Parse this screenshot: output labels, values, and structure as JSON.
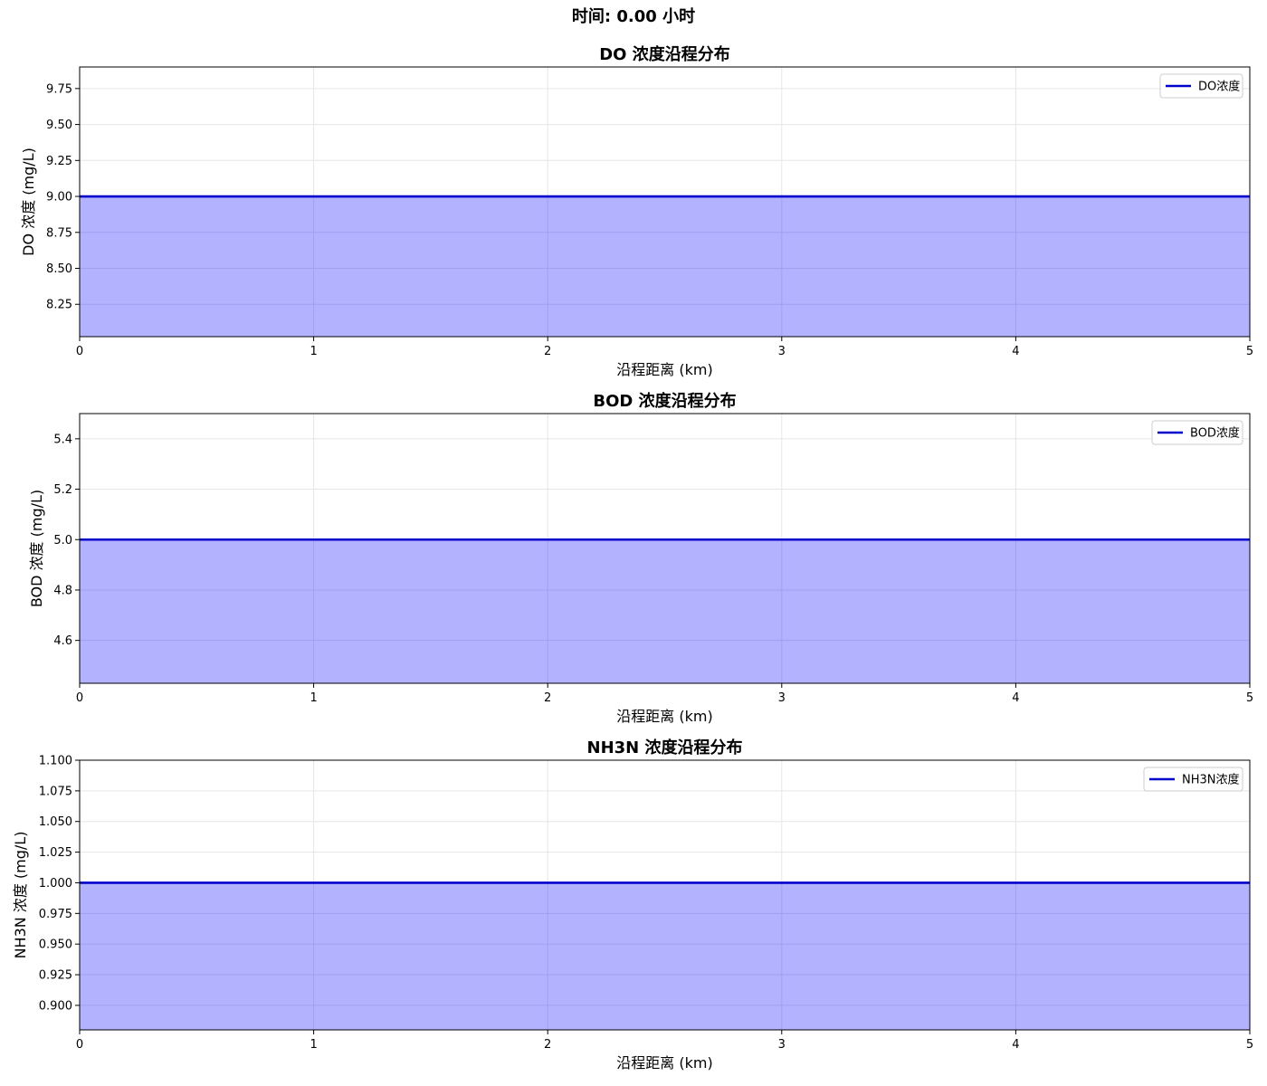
{
  "suptitle": "时间: 0.00 小时",
  "colors": {
    "line": "#0000cc",
    "fill": "#0000ff",
    "grid": "#e6e6e6"
  },
  "chart_data": [
    {
      "type": "area",
      "title": "DO 浓度沿程分布",
      "xlabel": "沿程距离 (km)",
      "ylabel": "DO 浓度 (mg/L)",
      "xlim": [
        0,
        5
      ],
      "ylim": [
        8.025,
        9.9
      ],
      "xticks": [
        0,
        1,
        2,
        3,
        4,
        5
      ],
      "xtick_labels": [
        "0",
        "1",
        "2",
        "3",
        "4",
        "5"
      ],
      "yticks": [
        8.25,
        8.5,
        8.75,
        9.0,
        9.25,
        9.5,
        9.75
      ],
      "ytick_labels": [
        "8.25",
        "8.50",
        "8.75",
        "9.00",
        "9.25",
        "9.50",
        "9.75"
      ],
      "grid": true,
      "legend_position": "top-right",
      "series": [
        {
          "name": "DO浓度",
          "x": [
            0,
            5
          ],
          "y": [
            9.0,
            9.0
          ]
        }
      ]
    },
    {
      "type": "area",
      "title": "BOD 浓度沿程分布",
      "xlabel": "沿程距离 (km)",
      "ylabel": "BOD 浓度 (mg/L)",
      "xlim": [
        0,
        5
      ],
      "ylim": [
        4.43,
        5.5
      ],
      "xticks": [
        0,
        1,
        2,
        3,
        4,
        5
      ],
      "xtick_labels": [
        "0",
        "1",
        "2",
        "3",
        "4",
        "5"
      ],
      "yticks": [
        4.6,
        4.8,
        5.0,
        5.2,
        5.4
      ],
      "ytick_labels": [
        "4.6",
        "4.8",
        "5.0",
        "5.2",
        "5.4"
      ],
      "grid": true,
      "legend_position": "top-right",
      "series": [
        {
          "name": "BOD浓度",
          "x": [
            0,
            5
          ],
          "y": [
            5.0,
            5.0
          ]
        }
      ]
    },
    {
      "type": "area",
      "title": "NH3N 浓度沿程分布",
      "xlabel": "沿程距离 (km)",
      "ylabel": "NH3N 浓度 (mg/L)",
      "xlim": [
        0,
        5
      ],
      "ylim": [
        0.88,
        1.1
      ],
      "xticks": [
        0,
        1,
        2,
        3,
        4,
        5
      ],
      "xtick_labels": [
        "0",
        "1",
        "2",
        "3",
        "4",
        "5"
      ],
      "yticks": [
        0.9,
        0.925,
        0.95,
        0.975,
        1.0,
        1.025,
        1.05,
        1.075,
        1.1
      ],
      "ytick_labels": [
        "0.900",
        "0.925",
        "0.950",
        "0.975",
        "1.000",
        "1.025",
        "1.050",
        "1.075",
        "1.100"
      ],
      "grid": true,
      "legend_position": "top-right",
      "series": [
        {
          "name": "NH3N浓度",
          "x": [
            0,
            5
          ],
          "y": [
            1.0,
            1.0
          ]
        }
      ]
    }
  ]
}
